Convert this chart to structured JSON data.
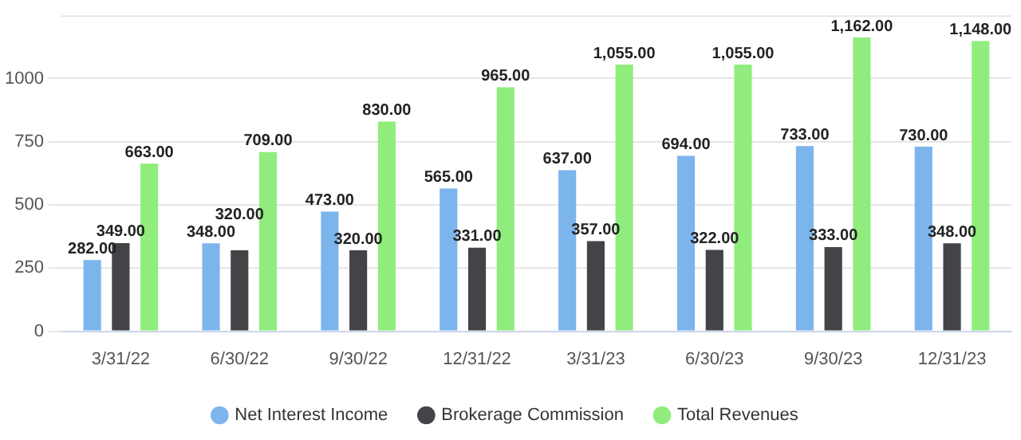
{
  "chart_data": {
    "type": "bar",
    "categories": [
      "3/31/22",
      "6/30/22",
      "9/30/22",
      "12/31/22",
      "3/31/23",
      "6/30/23",
      "9/30/23",
      "12/31/23"
    ],
    "series": [
      {
        "name": "Net Interest Income",
        "color": "#7cb5ec",
        "values": [
          282,
          348,
          473,
          565,
          637,
          694,
          733,
          730
        ],
        "value_labels": [
          "282.00",
          "348.00",
          "473.00",
          "565.00",
          "637.00",
          "694.00",
          "733.00",
          "730.00"
        ]
      },
      {
        "name": "Brokerage Commission",
        "color": "#434348",
        "values": [
          349,
          320,
          320,
          331,
          357,
          322,
          333,
          348
        ],
        "value_labels": [
          "349.00",
          "320.00",
          "320.00",
          "331.00",
          "357.00",
          "322.00",
          "333.00",
          "348.00"
        ]
      },
      {
        "name": "Total Revenues",
        "color": "#90ed7d",
        "values": [
          663,
          709,
          830,
          965,
          1055,
          1055,
          1162,
          1148
        ],
        "value_labels": [
          "663.00",
          "709.00",
          "830.00",
          "965.00",
          "1,055.00",
          "1,055.00",
          "1,162.00",
          "1,148.00"
        ]
      }
    ],
    "ylim": [
      0,
      1250
    ],
    "yticks": [
      0,
      250,
      500,
      750,
      1000
    ],
    "grid": "y",
    "legend": "bottom"
  }
}
